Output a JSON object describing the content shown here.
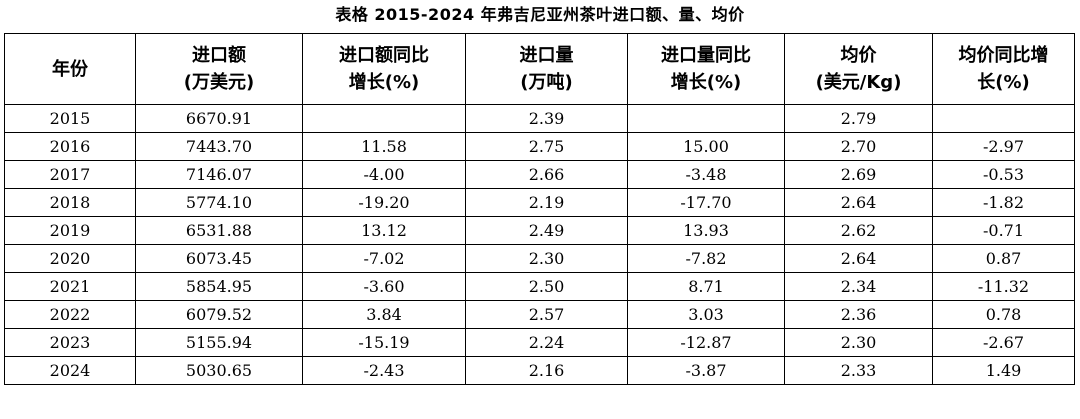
{
  "caption": "表格  2015-2024 年弗吉尼亚州茶叶进口额、量、均价",
  "headers": [
    {
      "line1": "年份",
      "line2": ""
    },
    {
      "line1": "进口额",
      "line2": "(万美元)"
    },
    {
      "line1": "进口额同比",
      "line2": "增长(%)"
    },
    {
      "line1": "进口量",
      "line2": "(万吨)"
    },
    {
      "line1": "进口量同比",
      "line2": "增长(%)"
    },
    {
      "line1": "均价",
      "line2": "(美元/Kg)"
    },
    {
      "line1": "均价同比增",
      "line2": "长(%)"
    }
  ],
  "rows": [
    [
      "2015",
      "6670.91",
      "",
      "2.39",
      "",
      "2.79",
      ""
    ],
    [
      "2016",
      "7443.70",
      "11.58",
      "2.75",
      "15.00",
      "2.70",
      "-2.97"
    ],
    [
      "2017",
      "7146.07",
      "-4.00",
      "2.66",
      "-3.48",
      "2.69",
      "-0.53"
    ],
    [
      "2018",
      "5774.10",
      "-19.20",
      "2.19",
      "-17.70",
      "2.64",
      "-1.82"
    ],
    [
      "2019",
      "6531.88",
      "13.12",
      "2.49",
      "13.93",
      "2.62",
      "-0.71"
    ],
    [
      "2020",
      "6073.45",
      "-7.02",
      "2.30",
      "-7.82",
      "2.64",
      "0.87"
    ],
    [
      "2021",
      "5854.95",
      "-3.60",
      "2.50",
      "8.71",
      "2.34",
      "-11.32"
    ],
    [
      "2022",
      "6079.52",
      "3.84",
      "2.57",
      "3.03",
      "2.36",
      "0.78"
    ],
    [
      "2023",
      "5155.94",
      "-15.19",
      "2.24",
      "-12.87",
      "2.30",
      "-2.67"
    ],
    [
      "2024",
      "5030.65",
      "-2.43",
      "2.16",
      "-3.87",
      "2.33",
      "1.49"
    ]
  ]
}
